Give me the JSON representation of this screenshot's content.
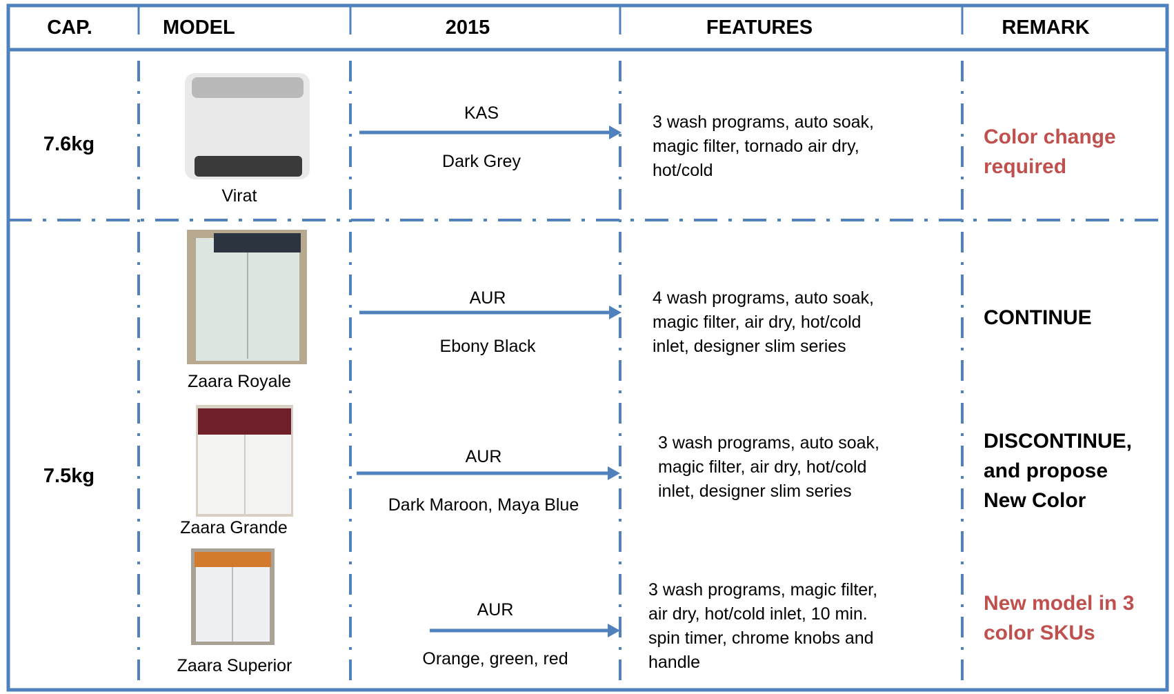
{
  "header": {
    "capacity": "CAP.",
    "model": "MODEL",
    "year": "2015",
    "features": "FEATURES",
    "remark": "REMARK"
  },
  "groups": [
    {
      "capacity": "7.6kg",
      "rows": [
        {
          "model": "Virat",
          "brand": "KAS",
          "colors": "Dark Grey",
          "features": "3 wash programs, auto soak, magic filter, tornado air dry, hot/cold",
          "remark": "Color change required"
        }
      ]
    },
    {
      "capacity": "7.5kg",
      "rows": [
        {
          "model": "Zaara Royale",
          "brand": "AUR",
          "colors": "Ebony Black",
          "features": "4 wash programs, auto soak, magic filter, air dry, hot/cold inlet, designer slim series",
          "remark": "CONTINUE"
        },
        {
          "model": "Zaara Grande",
          "brand": "AUR",
          "colors": "Dark Maroon, Maya Blue",
          "features": "3 wash programs, auto soak, magic filter, air dry, hot/cold inlet, designer slim series",
          "remark": "DISCONTINUE, and propose New Color"
        },
        {
          "model": "Zaara Superior",
          "brand": "AUR",
          "colors": "Orange, green, red",
          "features": "3 wash programs, magic filter, air dry, hot/cold inlet, 10 min. spin timer, chrome knobs and handle",
          "remark": "New model in 3 color SKUs"
        }
      ]
    }
  ]
}
